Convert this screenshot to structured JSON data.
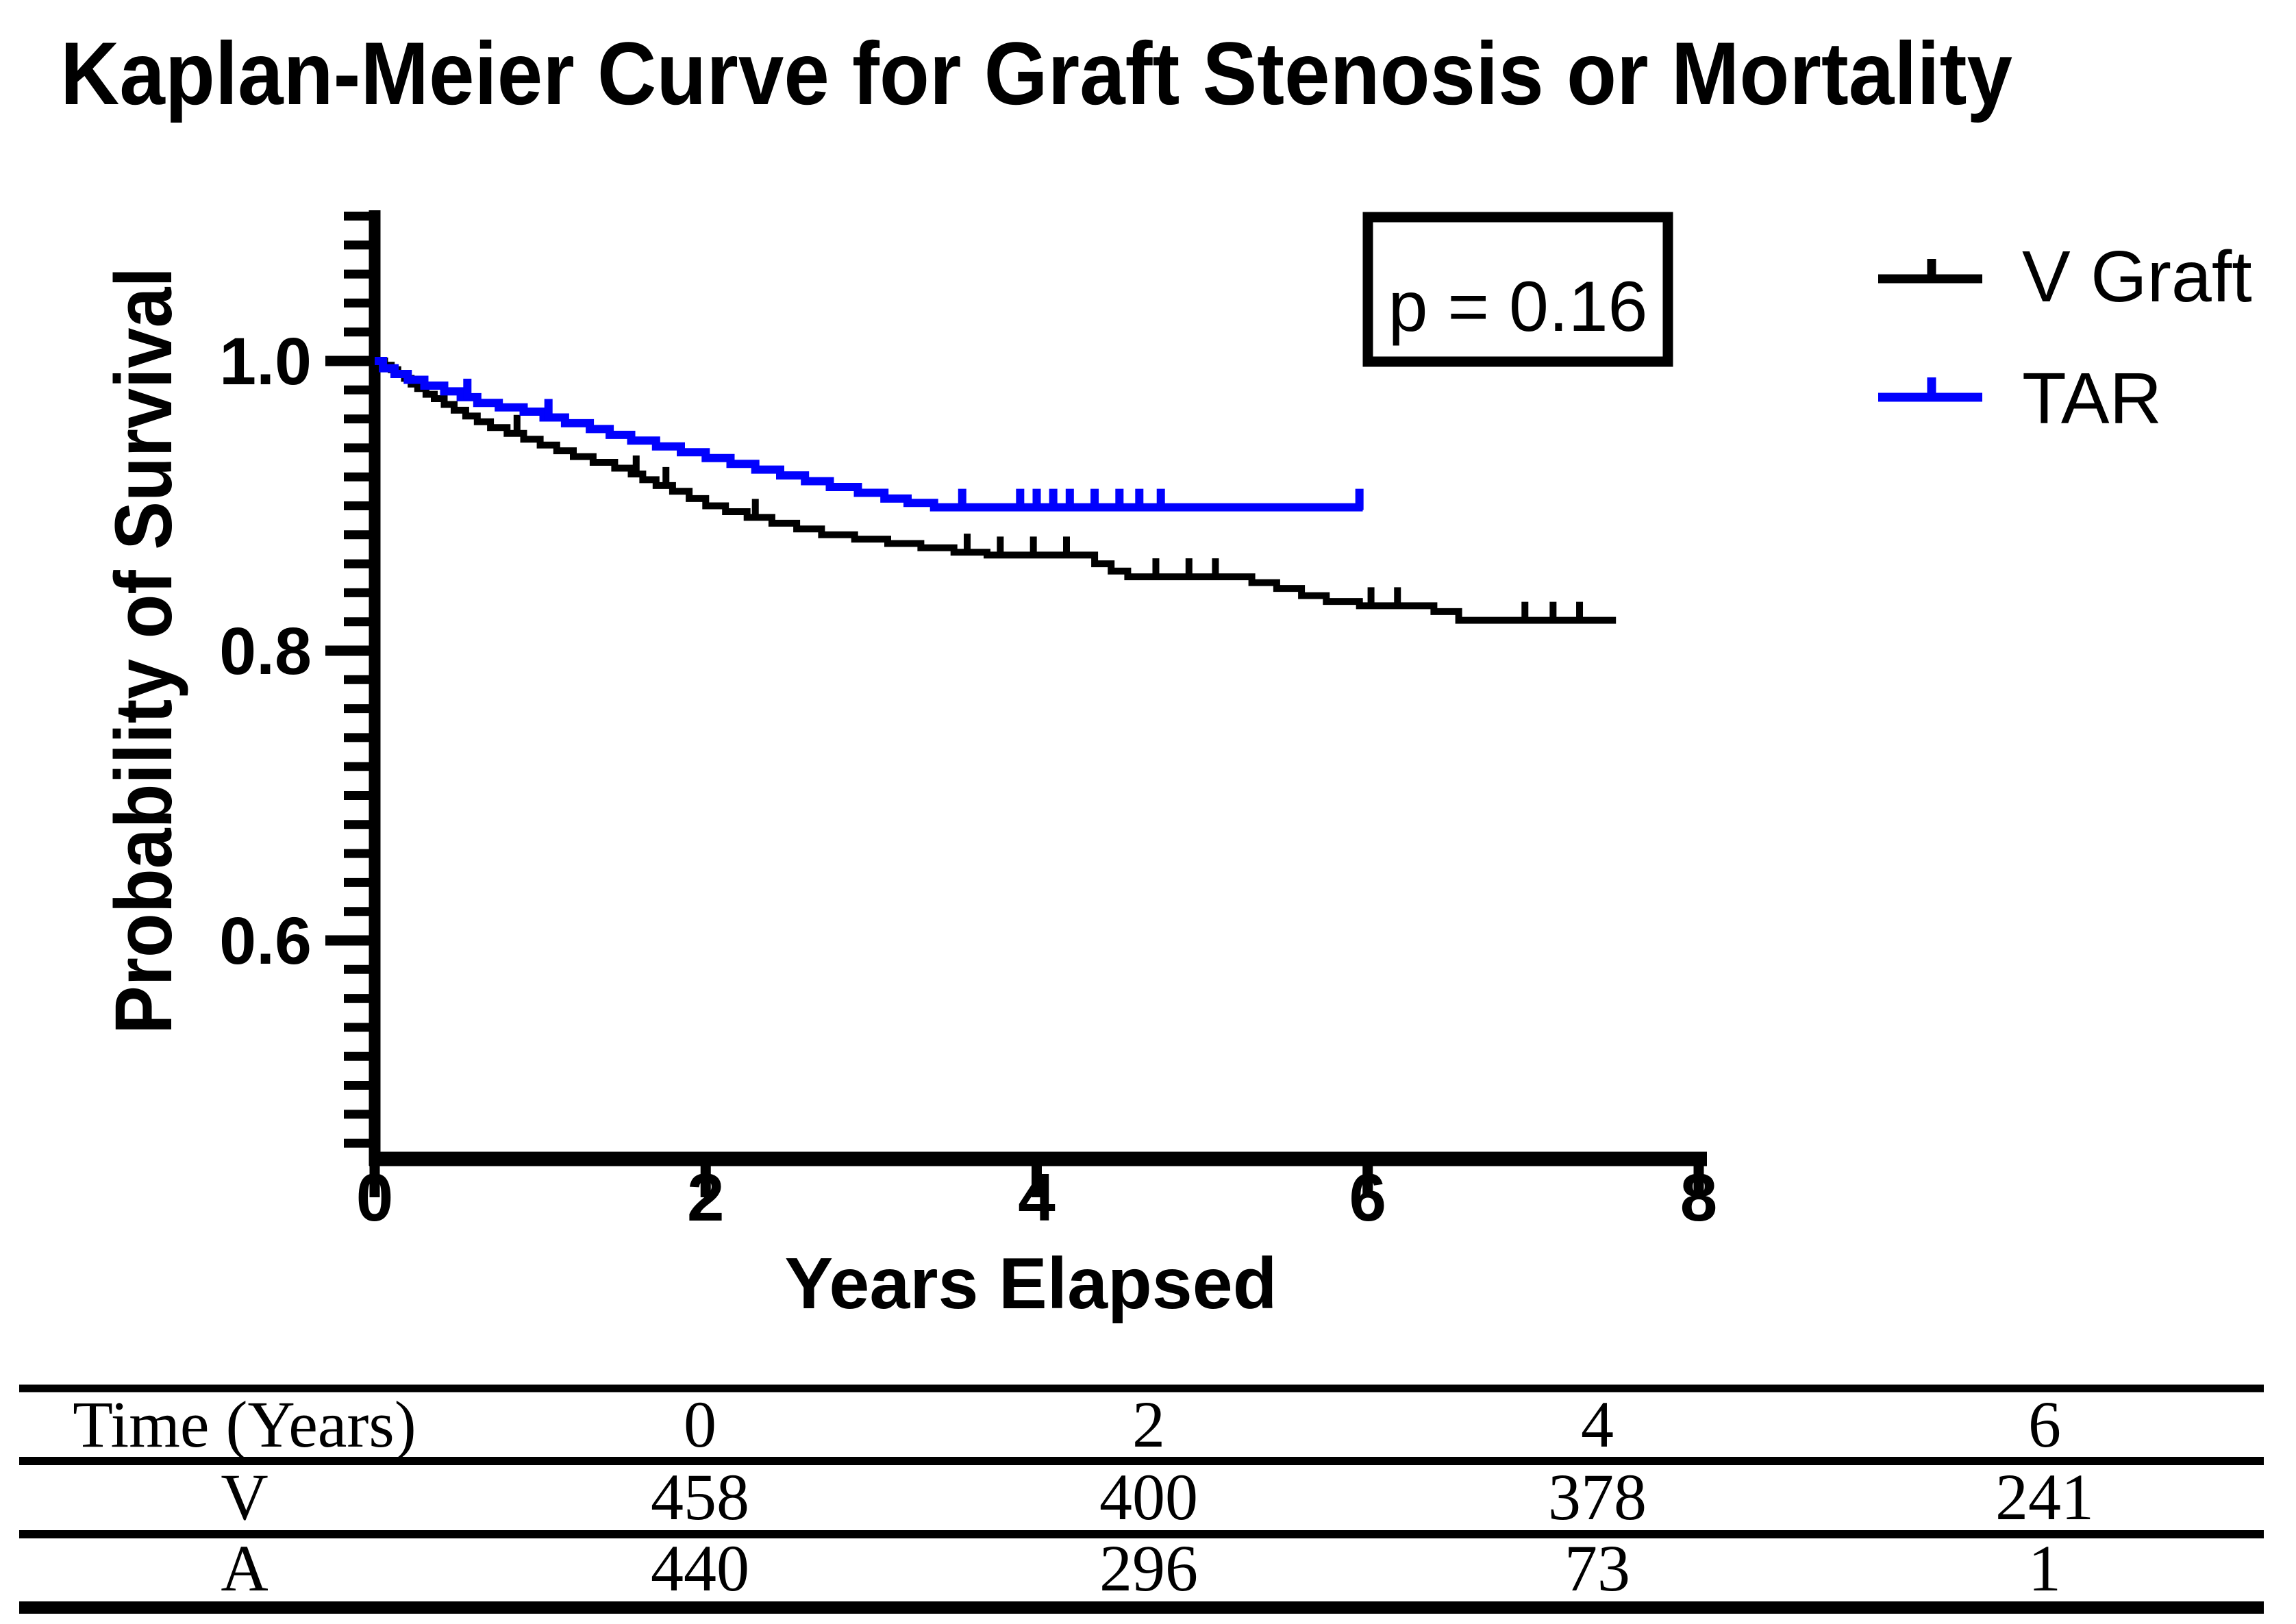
{
  "title": "Kaplan-Meier Curve for Graft Stenosis or Mortality",
  "chart_data": {
    "type": "line",
    "subtype": "kaplan-meier-step",
    "title": "Kaplan-Meier Curve for Graft Stenosis or Mortality",
    "xlabel": "Years Elapsed",
    "ylabel": "Probability of Survival",
    "annotation": "p = 0.16",
    "legend_position": "right-top",
    "grid": false,
    "xlim": [
      0,
      8
    ],
    "ylim": [
      0.45,
      1.1
    ],
    "x_ticks": [
      0,
      2,
      4,
      6,
      8
    ],
    "y_ticks": [
      "1.0",
      "0.8",
      "0.6"
    ],
    "y_tick_values": [
      1.0,
      0.8,
      0.6
    ],
    "y_minor_step": 0.02,
    "series": [
      {
        "name": "V Graft",
        "color": "#000000",
        "line_width": 10,
        "end_time": 7.5,
        "steps": [
          [
            0,
            1.0
          ],
          [
            0.06,
            0.997
          ],
          [
            0.1,
            0.994
          ],
          [
            0.14,
            0.991
          ],
          [
            0.18,
            0.988
          ],
          [
            0.22,
            0.984
          ],
          [
            0.26,
            0.981
          ],
          [
            0.31,
            0.977
          ],
          [
            0.36,
            0.974
          ],
          [
            0.42,
            0.97
          ],
          [
            0.48,
            0.966
          ],
          [
            0.55,
            0.962
          ],
          [
            0.62,
            0.958
          ],
          [
            0.7,
            0.954
          ],
          [
            0.8,
            0.95
          ],
          [
            0.9,
            0.946
          ],
          [
            1.0,
            0.942
          ],
          [
            1.1,
            0.938
          ],
          [
            1.2,
            0.934
          ],
          [
            1.32,
            0.93
          ],
          [
            1.45,
            0.926
          ],
          [
            1.55,
            0.922
          ],
          [
            1.62,
            0.918
          ],
          [
            1.7,
            0.914
          ],
          [
            1.8,
            0.91
          ],
          [
            1.9,
            0.905
          ],
          [
            2.0,
            0.9
          ],
          [
            2.12,
            0.896
          ],
          [
            2.25,
            0.892
          ],
          [
            2.4,
            0.888
          ],
          [
            2.55,
            0.884
          ],
          [
            2.7,
            0.88
          ],
          [
            2.9,
            0.877
          ],
          [
            3.1,
            0.874
          ],
          [
            3.3,
            0.871
          ],
          [
            3.5,
            0.868
          ],
          [
            3.7,
            0.866
          ],
          [
            4.35,
            0.86
          ],
          [
            4.45,
            0.855
          ],
          [
            4.55,
            0.851
          ],
          [
            5.3,
            0.847
          ],
          [
            5.45,
            0.843
          ],
          [
            5.6,
            0.838
          ],
          [
            5.75,
            0.834
          ],
          [
            5.95,
            0.831
          ],
          [
            6.4,
            0.827
          ],
          [
            6.55,
            0.821
          ]
        ],
        "censors": [
          [
            0.86,
            0.95
          ],
          [
            1.58,
            0.922
          ],
          [
            1.76,
            0.914
          ],
          [
            2.3,
            0.892
          ],
          [
            3.58,
            0.868
          ],
          [
            3.78,
            0.866
          ],
          [
            3.98,
            0.866
          ],
          [
            4.18,
            0.866
          ],
          [
            4.72,
            0.851
          ],
          [
            4.92,
            0.851
          ],
          [
            5.08,
            0.851
          ],
          [
            6.02,
            0.831
          ],
          [
            6.18,
            0.831
          ],
          [
            6.95,
            0.821
          ],
          [
            7.12,
            0.821
          ],
          [
            7.28,
            0.821
          ]
        ]
      },
      {
        "name": "TAR",
        "color": "#0101FD",
        "line_width": 12,
        "end_time": 5.97,
        "steps": [
          [
            0,
            1.0
          ],
          [
            0.05,
            0.995
          ],
          [
            0.12,
            0.991
          ],
          [
            0.2,
            0.987
          ],
          [
            0.3,
            0.983
          ],
          [
            0.42,
            0.979
          ],
          [
            0.52,
            0.975
          ],
          [
            0.62,
            0.971
          ],
          [
            0.75,
            0.968
          ],
          [
            0.9,
            0.965
          ],
          [
            1.02,
            0.961
          ],
          [
            1.15,
            0.957
          ],
          [
            1.3,
            0.953
          ],
          [
            1.42,
            0.949
          ],
          [
            1.55,
            0.945
          ],
          [
            1.7,
            0.941
          ],
          [
            1.85,
            0.937
          ],
          [
            2.0,
            0.933
          ],
          [
            2.15,
            0.929
          ],
          [
            2.3,
            0.925
          ],
          [
            2.45,
            0.921
          ],
          [
            2.6,
            0.917
          ],
          [
            2.75,
            0.913
          ],
          [
            2.92,
            0.909
          ],
          [
            3.08,
            0.905
          ],
          [
            3.22,
            0.902
          ],
          [
            3.38,
            0.899
          ]
        ],
        "censors": [
          [
            0.56,
            0.975
          ],
          [
            1.05,
            0.961
          ],
          [
            3.55,
            0.899
          ],
          [
            3.9,
            0.899
          ],
          [
            4.0,
            0.899
          ],
          [
            4.1,
            0.899
          ],
          [
            4.2,
            0.899
          ],
          [
            4.35,
            0.899
          ],
          [
            4.5,
            0.899
          ],
          [
            4.62,
            0.899
          ],
          [
            4.75,
            0.899
          ],
          [
            5.95,
            0.899
          ]
        ]
      }
    ],
    "risk_table": {
      "header": [
        "Time (Years)",
        "0",
        "2",
        "4",
        "6"
      ],
      "rows": [
        [
          "V",
          "458",
          "400",
          "378",
          "241"
        ],
        [
          "A",
          "440",
          "296",
          "73",
          "1"
        ]
      ]
    }
  }
}
